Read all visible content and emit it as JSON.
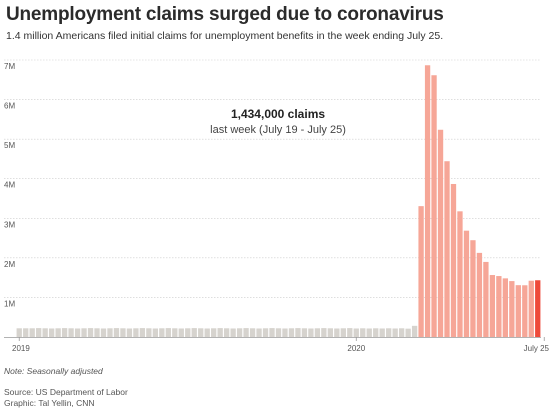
{
  "header": {
    "title": "Unemployment claims surged due to coronavirus",
    "subtitle": "1.4 million Americans filed initial claims for unemployment benefits in the week ending July 25."
  },
  "footer": {
    "note": "Note: Seasonally adjusted",
    "source": "Source: US Department of Labor",
    "graphic": "Graphic: Tal Yellin, CNN"
  },
  "colors": {
    "baseline_bar": "#d6d3ce",
    "surge_bar": "#f6a697",
    "latest_bar": "#ee4a3a",
    "gridline": "#cccccc",
    "baseline_axis": "#999999"
  },
  "chart_data": {
    "type": "bar",
    "title": "",
    "xlabel": "",
    "ylabel": "",
    "ylim": [
      0,
      7000000
    ],
    "y_ticks": [
      {
        "value": 1000000,
        "label": "1M"
      },
      {
        "value": 2000000,
        "label": "2M"
      },
      {
        "value": 3000000,
        "label": "3M"
      },
      {
        "value": 4000000,
        "label": "4M"
      },
      {
        "value": 5000000,
        "label": "5M"
      },
      {
        "value": 6000000,
        "label": "6M"
      },
      {
        "value": 7000000,
        "label": "7M"
      }
    ],
    "x_ticks": [
      {
        "index": 0,
        "label": "2019"
      },
      {
        "index": 52,
        "label": "2020"
      },
      {
        "index": 81,
        "label": "July 25"
      }
    ],
    "grid": true,
    "annotation": {
      "headline": "1,434,000 claims",
      "detail": "last week (July 19 - July 25)"
    },
    "series": [
      {
        "values": [
          220000,
          220000,
          220000,
          225000,
          220000,
          215000,
          220000,
          225000,
          220000,
          215000,
          220000,
          225000,
          220000,
          215000,
          220000,
          225000,
          220000,
          215000,
          220000,
          225000,
          220000,
          215000,
          220000,
          225000,
          220000,
          215000,
          220000,
          225000,
          220000,
          215000,
          220000,
          225000,
          220000,
          215000,
          220000,
          225000,
          220000,
          215000,
          220000,
          225000,
          220000,
          215000,
          220000,
          225000,
          220000,
          215000,
          220000,
          225000,
          220000,
          215000,
          220000,
          225000,
          215000,
          220000,
          215000,
          220000,
          215000,
          220000,
          215000,
          220000,
          211000,
          282000,
          3307000,
          6867000,
          6615000,
          5237000,
          4442000,
          3867000,
          3176000,
          2687000,
          2446000,
          2126000,
          1897000,
          1566000,
          1540000,
          1482000,
          1413000,
          1310000,
          1307000,
          1422000,
          1434000
        ]
      }
    ],
    "latest_index": 80
  }
}
